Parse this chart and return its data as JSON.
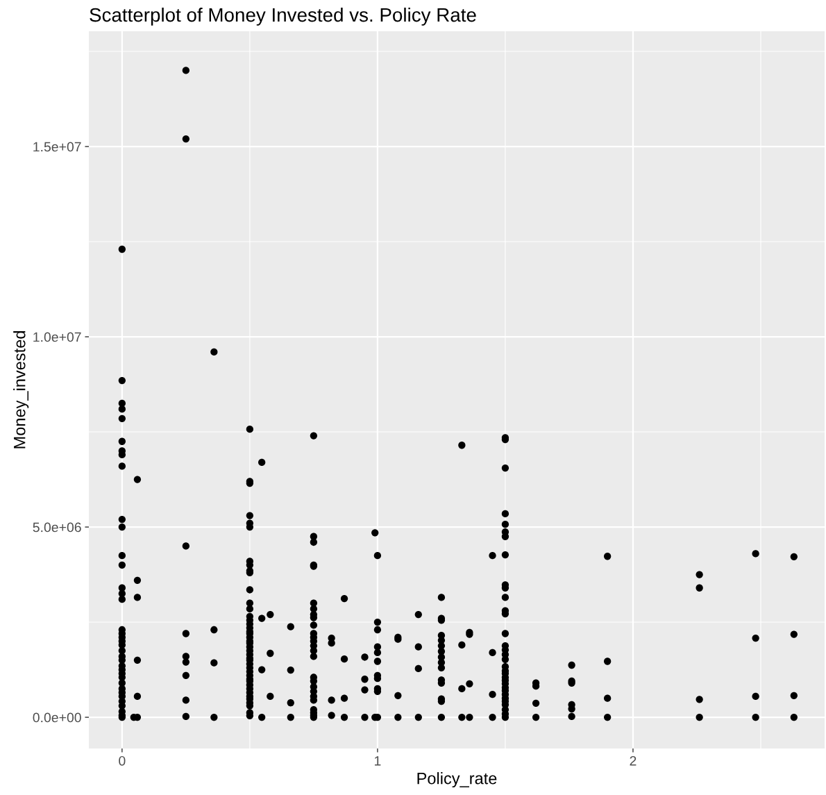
{
  "chart_data": {
    "type": "scatter",
    "title": "Scatterplot of Money Invested vs. Policy Rate",
    "xlabel": "Policy_rate",
    "ylabel": "Money_invested",
    "xlim": [
      -0.13,
      2.75
    ],
    "ylim": [
      -820000,
      18030000
    ],
    "xticks": [
      0,
      1,
      2
    ],
    "yticks": [
      {
        "value": 0,
        "label": "0.0e+00"
      },
      {
        "value": 5000000,
        "label": "5.0e+06"
      },
      {
        "value": 10000000,
        "label": "1.0e+07"
      },
      {
        "value": 15000000,
        "label": "1.5e+07"
      }
    ],
    "grid": true,
    "marker": "circle",
    "legend": false,
    "series": [
      {
        "color": "#000000",
        "x": [
          0,
          0,
          0,
          0,
          0,
          0,
          0,
          0,
          0,
          0,
          0,
          0,
          0,
          0,
          0,
          0,
          0,
          0,
          0,
          0,
          0,
          0,
          0,
          0,
          0,
          0,
          0,
          0,
          0,
          0,
          0,
          0,
          0,
          0,
          0,
          0,
          0,
          0.046,
          0.06,
          0.06,
          0.06,
          0.06,
          0.06,
          0.06,
          0.25,
          0.25,
          0.25,
          0.25,
          0.25,
          0.25,
          0.25,
          0.25,
          0.25,
          0.36,
          0.36,
          0.36,
          0.36,
          0.5,
          0.5,
          0.5,
          0.5,
          0.5,
          0.5,
          0.5,
          0.5,
          0.5,
          0.5,
          0.5,
          0.5,
          0.5,
          0.5,
          0.5,
          0.5,
          0.5,
          0.5,
          0.5,
          0.5,
          0.5,
          0.5,
          0.5,
          0.5,
          0.5,
          0.5,
          0.5,
          0.5,
          0.5,
          0.5,
          0.5,
          0.5,
          0.5,
          0.5,
          0.5,
          0.5,
          0.5,
          0.5,
          0.5,
          0.5,
          0.5,
          0.5,
          0.547,
          0.547,
          0.547,
          0.547,
          0.58,
          0.58,
          0.58,
          0.66,
          0.66,
          0.66,
          0.66,
          0.75,
          0.75,
          0.75,
          0.75,
          0.75,
          0.75,
          0.75,
          0.75,
          0.75,
          0.75,
          0.75,
          0.75,
          0.75,
          0.75,
          0.75,
          0.75,
          0.75,
          0.75,
          0.75,
          0.75,
          0.75,
          0.75,
          0.75,
          0.75,
          0.75,
          0.75,
          0.82,
          0.82,
          0.82,
          0.82,
          0.87,
          0.87,
          0.87,
          0.87,
          0.95,
          0.95,
          0.95,
          0.95,
          0.99,
          0.99,
          1.0,
          1.0,
          1.0,
          1.0,
          1.0,
          1.0,
          1.0,
          1.0,
          1.0,
          1.0,
          1.0,
          1.08,
          1.08,
          1.08,
          1.08,
          1.16,
          1.16,
          1.16,
          1.16,
          1.25,
          1.25,
          1.25,
          1.25,
          1.25,
          1.25,
          1.25,
          1.25,
          1.25,
          1.25,
          1.25,
          1.25,
          1.25,
          1.25,
          1.25,
          1.33,
          1.33,
          1.33,
          1.33,
          1.36,
          1.36,
          1.36,
          1.36,
          1.45,
          1.45,
          1.45,
          1.45,
          1.5,
          1.5,
          1.5,
          1.5,
          1.5,
          1.5,
          1.5,
          1.5,
          1.5,
          1.5,
          1.5,
          1.5,
          1.5,
          1.5,
          1.5,
          1.5,
          1.5,
          1.5,
          1.5,
          1.5,
          1.5,
          1.5,
          1.5,
          1.5,
          1.5,
          1.5,
          1.5,
          1.5,
          1.5,
          1.5,
          1.5,
          1.5,
          1.5,
          1.62,
          1.62,
          1.62,
          1.62,
          1.76,
          1.76,
          1.76,
          1.76,
          1.76,
          1.76,
          1.9,
          1.9,
          1.9,
          1.9,
          2.26,
          2.26,
          2.26,
          2.26,
          2.48,
          2.48,
          2.48,
          2.48,
          2.63,
          2.63,
          2.63,
          2.63
        ],
        "values": [
          12300000.0,
          8850000.0,
          8250000.0,
          8100000.0,
          7850000.0,
          7250000.0,
          7000000.0,
          6900000.0,
          6600000.0,
          5200000.0,
          5000000.0,
          4250000.0,
          4000000.0,
          3400000.0,
          3250000.0,
          3100000.0,
          2300000.0,
          2200000.0,
          2100000.0,
          2000000.0,
          1900000.0,
          1750000.0,
          1600000.0,
          1500000.0,
          1350000.0,
          1250000.0,
          1150000.0,
          1050000.0,
          900000.0,
          750000.0,
          650000.0,
          550000.0,
          420000.0,
          300000.0,
          150000.0,
          50000.0,
          0,
          0,
          6250000.0,
          3600000.0,
          3150000.0,
          1500000.0,
          550000.0,
          0,
          17000000.0,
          15200000.0,
          4500000.0,
          2200000.0,
          1600000.0,
          1450000.0,
          1100000.0,
          450000.0,
          20000.0,
          9600000.0,
          2300000.0,
          1430000.0,
          0,
          7570000.0,
          6200000.0,
          6150000.0,
          5300000.0,
          5100000.0,
          5000000.0,
          4100000.0,
          4000000.0,
          3850000.0,
          3800000.0,
          3350000.0,
          3000000.0,
          2850000.0,
          2650000.0,
          2550000.0,
          2450000.0,
          2350000.0,
          2250000.0,
          2200000.0,
          2100000.0,
          2000000.0,
          1950000.0,
          1850000.0,
          1750000.0,
          1650000.0,
          1550000.0,
          1500000.0,
          1400000.0,
          1300000.0,
          1200000.0,
          1100000.0,
          1000000.0,
          950000.0,
          850000.0,
          750000.0,
          650000.0,
          550000.0,
          480000.0,
          380000.0,
          300000.0,
          120000.0,
          40000.0,
          6700000.0,
          2600000.0,
          1250000.0,
          0,
          2700000.0,
          1680000.0,
          550000.0,
          2380000.0,
          1240000.0,
          380000.0,
          0,
          7400000.0,
          4750000.0,
          4600000.0,
          4000000.0,
          3970000.0,
          3000000.0,
          2850000.0,
          2700000.0,
          2620000.0,
          2420000.0,
          2200000.0,
          2100000.0,
          2000000.0,
          1880000.0,
          1750000.0,
          1600000.0,
          1050000.0,
          950000.0,
          800000.0,
          680000.0,
          550000.0,
          450000.0,
          200000.0,
          120000.0,
          50000.0,
          0,
          2080000.0,
          1950000.0,
          450000.0,
          50000.0,
          3120000.0,
          1530000.0,
          500000.0,
          0,
          1580000.0,
          1000000.0,
          720000.0,
          0,
          4850000.0,
          0,
          4250000.0,
          2500000.0,
          2300000.0,
          1850000.0,
          1700000.0,
          1470000.0,
          1100000.0,
          1020000.0,
          750000.0,
          680000.0,
          0,
          2100000.0,
          2050000.0,
          570000.0,
          0,
          2700000.0,
          1850000.0,
          1280000.0,
          0,
          3150000.0,
          2600000.0,
          2550000.0,
          2150000.0,
          2020000.0,
          1880000.0,
          1730000.0,
          1580000.0,
          1440000.0,
          1300000.0,
          980000.0,
          900000.0,
          480000.0,
          420000.0,
          0,
          7150000.0,
          1900000.0,
          750000.0,
          0,
          2230000.0,
          2180000.0,
          880000.0,
          0,
          4250000.0,
          1700000.0,
          600000.0,
          0,
          7350000.0,
          7300000.0,
          6550000.0,
          5350000.0,
          5070000.0,
          4870000.0,
          4750000.0,
          4270000.0,
          3480000.0,
          3400000.0,
          3150000.0,
          2800000.0,
          2720000.0,
          2200000.0,
          1880000.0,
          1770000.0,
          1650000.0,
          1520000.0,
          1330000.0,
          1220000.0,
          1150000.0,
          1050000.0,
          970000.0,
          880000.0,
          780000.0,
          700000.0,
          600000.0,
          500000.0,
          420000.0,
          330000.0,
          200000.0,
          90000.0,
          0,
          900000.0,
          820000.0,
          370000.0,
          0,
          1370000.0,
          950000.0,
          900000.0,
          330000.0,
          220000.0,
          20000.0,
          4230000.0,
          1470000.0,
          500000.0,
          0,
          3750000.0,
          3400000.0,
          470000.0,
          0,
          4300000.0,
          2080000.0,
          550000.0,
          0,
          4220000.0,
          2180000.0,
          570000.0,
          0
        ]
      }
    ]
  }
}
